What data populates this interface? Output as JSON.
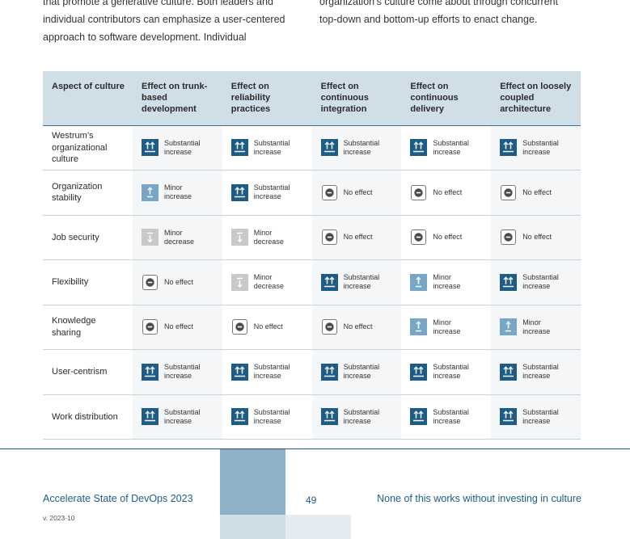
{
  "intro": {
    "left_lines": [
      "that promote a generative culture. Both leaders and",
      "individual contributors can emphasize a user-centered",
      "approach to software development. Individual"
    ],
    "right_lines": [
      "organization’s culture come about through concurrent",
      "top-down and bottom-up efforts to enact change."
    ]
  },
  "table": {
    "headers": [
      "Aspect of culture",
      "Effect on trunk-based development",
      "Effect on reliability practices",
      "Effect on continuous integration",
      "Effect on continuous delivery",
      "Effect on loosely coupled architecture"
    ],
    "effect_labels": {
      "substantial_increase": [
        "Substantial",
        "increase"
      ],
      "minor_increase": [
        "Minor",
        "increase"
      ],
      "minor_decrease": [
        "Minor",
        "decrease"
      ],
      "no_effect": [
        "No effect"
      ]
    },
    "effect_icons": {
      "substantial_increase": "double-up-arrow-icon",
      "minor_increase": "up-arrow-icon",
      "minor_decrease": "down-arrow-icon",
      "no_effect": "minus-icon"
    },
    "effect_colors": {
      "substantial_increase": "#1d5c87",
      "minor_increase": "#78a6c6",
      "minor_decrease": "#c9c9c9",
      "no_effect": "#ffffff"
    },
    "rows": [
      {
        "aspect": "Westrum’s organizational culture",
        "effects": [
          "substantial_increase",
          "substantial_increase",
          "substantial_increase",
          "substantial_increase",
          "substantial_increase"
        ]
      },
      {
        "aspect": "Organization stability",
        "effects": [
          "minor_increase",
          "substantial_increase",
          "no_effect",
          "no_effect",
          "no_effect"
        ]
      },
      {
        "aspect": "Job security",
        "effects": [
          "minor_decrease",
          "minor_decrease",
          "no_effect",
          "no_effect",
          "no_effect"
        ]
      },
      {
        "aspect": "Flexibility",
        "effects": [
          "no_effect",
          "minor_decrease",
          "substantial_increase",
          "minor_increase",
          "substantial_increase"
        ]
      },
      {
        "aspect": "Knowledge sharing",
        "effects": [
          "no_effect",
          "no_effect",
          "no_effect",
          "minor_increase",
          "minor_increase"
        ]
      },
      {
        "aspect": "User-centrism",
        "effects": [
          "substantial_increase",
          "substantial_increase",
          "substantial_increase",
          "substantial_increase",
          "substantial_increase"
        ]
      },
      {
        "aspect": "Work distribution",
        "effects": [
          "substantial_increase",
          "substantial_increase",
          "substantial_increase",
          "substantial_increase",
          "substantial_increase"
        ]
      }
    ]
  },
  "footer": {
    "title": "Accelerate State of DevOps 2023",
    "version": "v. 2023-10",
    "page_number": "49",
    "chapter": "None of this works without investing in culture"
  }
}
